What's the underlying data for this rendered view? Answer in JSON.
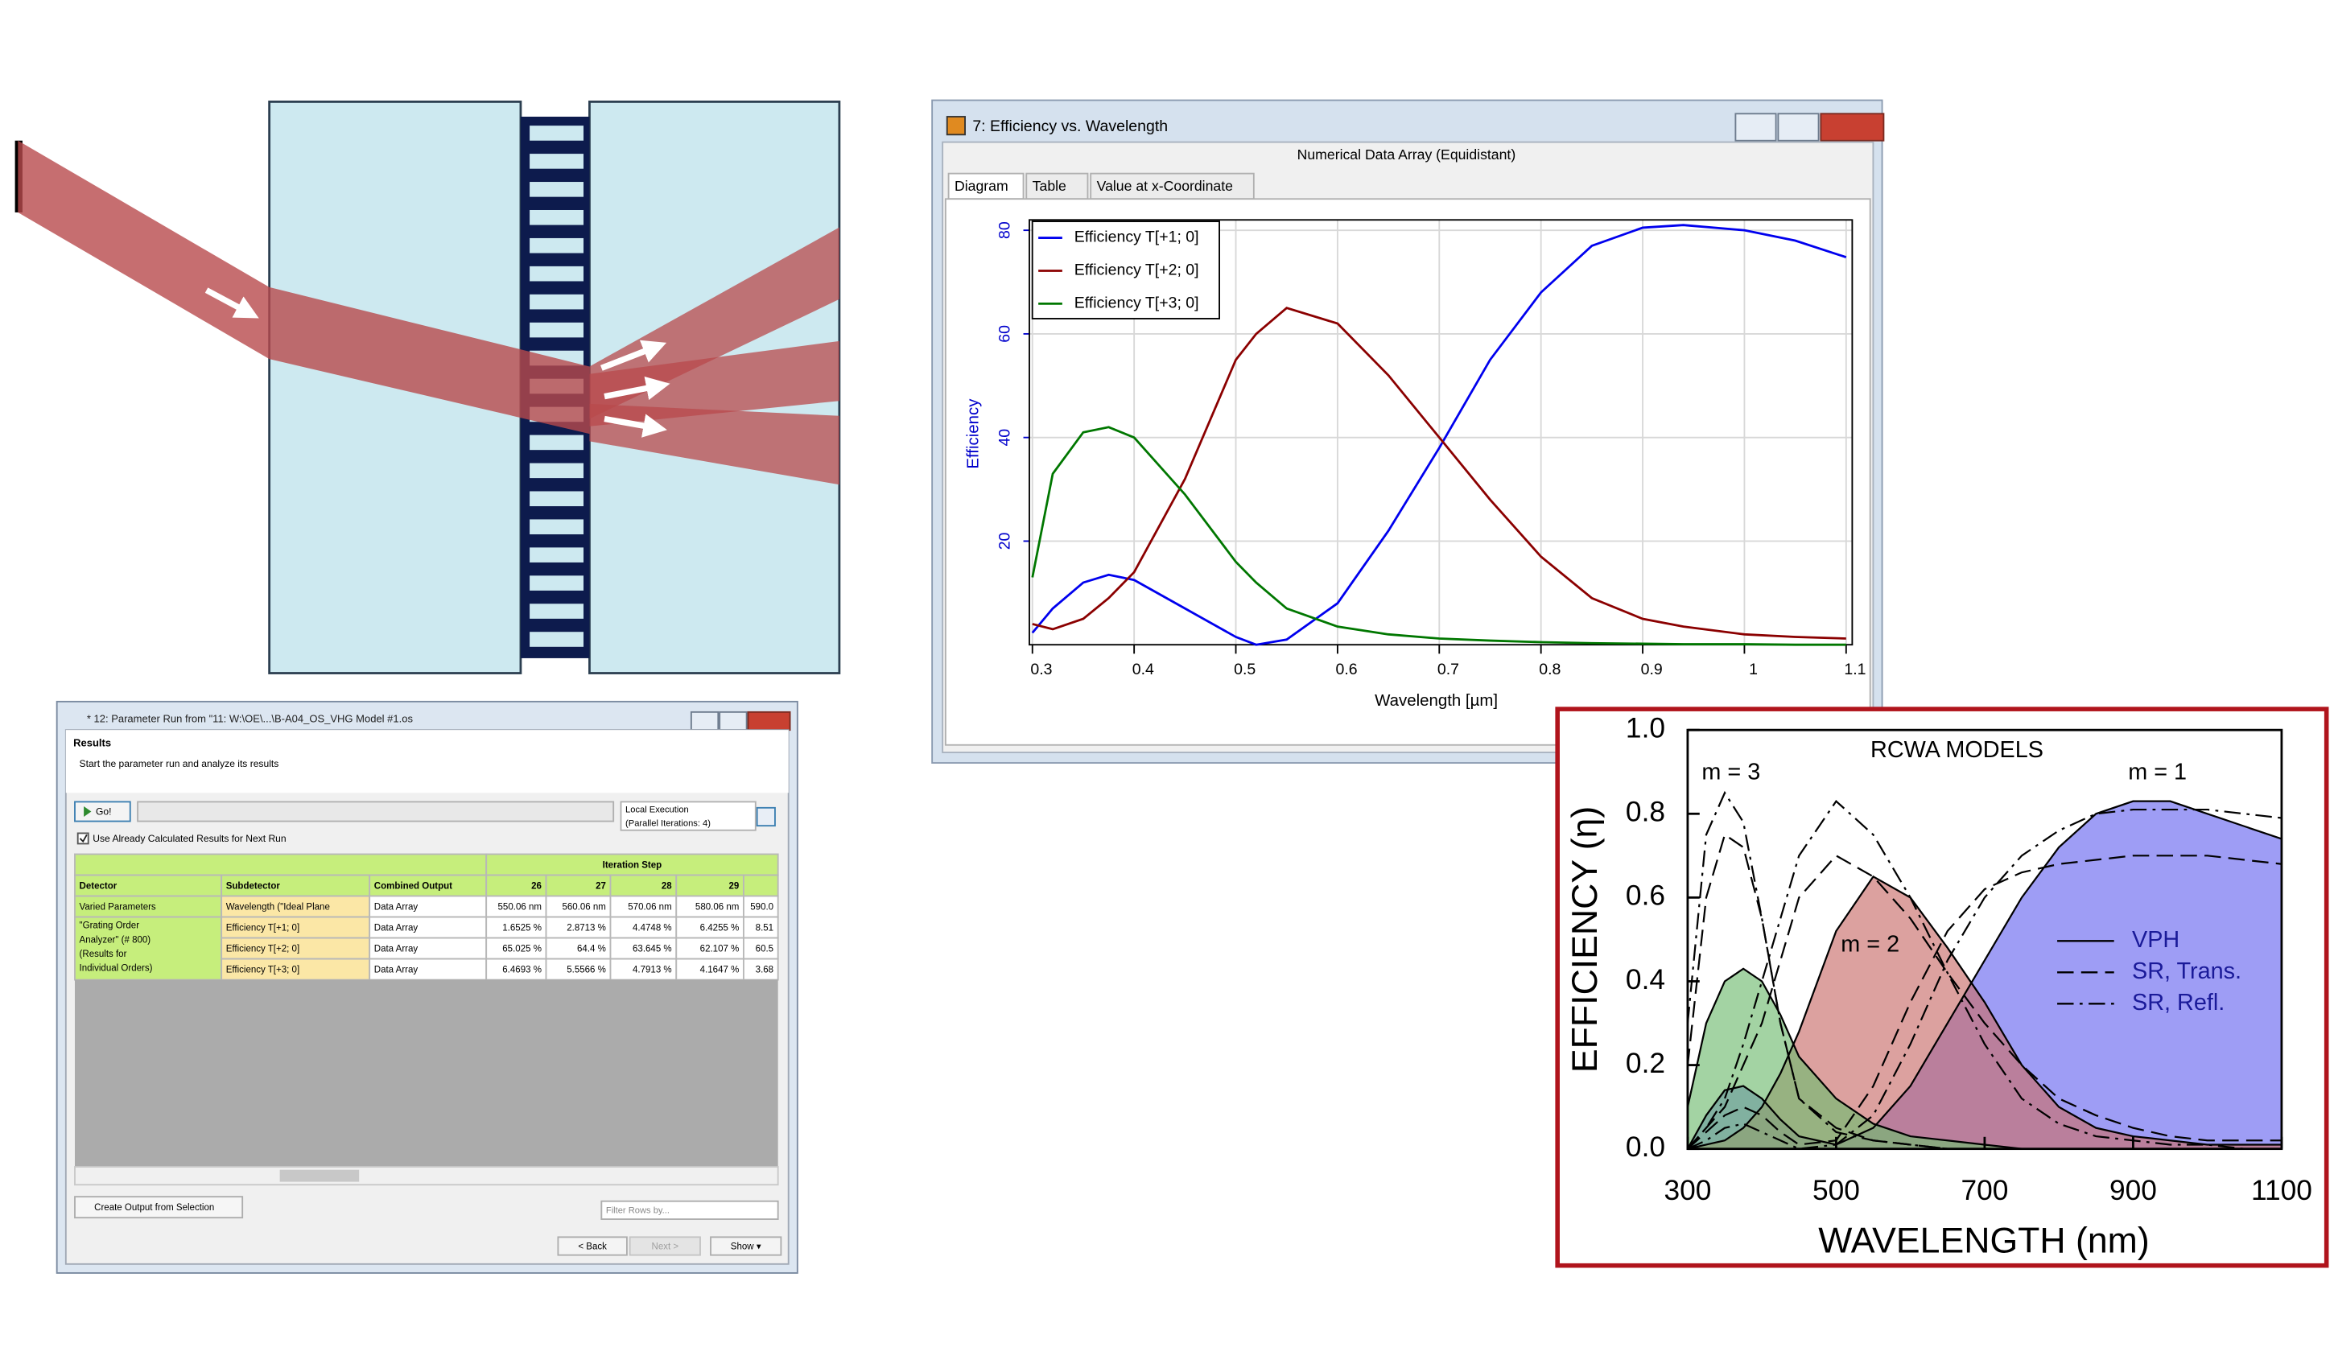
{
  "parameter_run_window": {
    "title": "* 12: Parameter Run from \"11: W:\\OE\\...\\B-A04_OS_VHG Model #1.os",
    "section_title": "Results",
    "section_subtitle": "Start the parameter run and analyze its results",
    "go_button": "Go!",
    "execution_mode": "Local Execution",
    "parallel_note": "(Parallel Iterations: 4)",
    "checkbox_label": "Use Already Calculated Results for Next Run",
    "table": {
      "group_header": "Iteration Step",
      "headers": [
        "Detector",
        "Subdetector",
        "Combined Output",
        "26",
        "27",
        "28",
        "29"
      ],
      "varied_row": [
        "Varied Parameters",
        "Wavelength (\"Ideal Plane",
        "Data Array",
        "550.06 nm",
        "560.06 nm",
        "570.06 nm",
        "580.06 nm",
        "590.0"
      ],
      "detector": "\"Grating Order Analyzer\" (# 800) (Results for Individual Orders)",
      "rows": [
        [
          "Efficiency T[+1; 0]",
          "Data Array",
          "1.6525 %",
          "2.8713 %",
          "4.4748 %",
          "6.4255 %",
          "8.51"
        ],
        [
          "Efficiency T[+2; 0]",
          "Data Array",
          "65.025 %",
          "64.4 %",
          "63.645 %",
          "62.107 %",
          "60.5"
        ],
        [
          "Efficiency T[+3; 0]",
          "Data Array",
          "6.4693 %",
          "5.5566 %",
          "4.7913 %",
          "4.1647 %",
          "3.68"
        ]
      ]
    },
    "create_output_button": "Create Output from Selection",
    "filter_placeholder": "Filter Rows by...",
    "back_button": "< Back",
    "next_button": "Next >",
    "show_button": "Show ▾"
  },
  "efficiency_window": {
    "title": "7: Efficiency vs. Wavelength",
    "subtitle": "Numerical Data Array (Equidistant)",
    "tabs": [
      "Diagram",
      "Table",
      "Value at x-Coordinate"
    ]
  },
  "chart_data": [
    {
      "type": "line",
      "x_label": "Wavelength [µm]",
      "y_label": "Efficiency",
      "x": [
        0.3,
        0.32,
        0.35,
        0.375,
        0.4,
        0.45,
        0.5,
        0.52,
        0.55,
        0.6,
        0.65,
        0.7,
        0.75,
        0.8,
        0.85,
        0.9,
        0.94,
        1.0,
        1.05,
        1.1
      ],
      "series": [
        {
          "name": "Efficiency T[+1; 0]",
          "color": "#0000ee",
          "values": [
            2.3,
            7,
            12,
            13.5,
            12.5,
            7,
            1.5,
            0,
            1,
            8,
            22,
            38,
            55,
            68,
            77,
            80.5,
            81,
            80,
            78,
            74.8
          ]
        },
        {
          "name": "Efficiency T[+2; 0]",
          "color": "#8b0000",
          "values": [
            4,
            3,
            5,
            9,
            14,
            32,
            55,
            60,
            65,
            62,
            52,
            40,
            28,
            17,
            9,
            5,
            3.5,
            2,
            1.5,
            1.2
          ]
        },
        {
          "name": "Efficiency T[+3; 0]",
          "color": "#007700",
          "values": [
            13,
            33,
            41,
            42,
            40,
            29,
            16,
            12,
            7,
            3.5,
            2,
            1.2,
            0.8,
            0.5,
            0.3,
            0.2,
            0.1,
            0.1,
            0,
            0
          ]
        }
      ],
      "xlim": [
        0.297,
        1.106
      ],
      "ylim": [
        0,
        82
      ],
      "xticks": [
        0.3,
        0.4,
        0.5,
        0.6,
        0.7,
        0.8,
        0.9,
        1,
        1.1
      ],
      "yticks": [
        20,
        40,
        60,
        80
      ],
      "grid": true,
      "legend": "upper-left"
    },
    {
      "type": "area",
      "title": "RCWA MODELS",
      "x_label": "WAVELENGTH (nm)",
      "y_label": "EFFICIENCY (η)",
      "x": [
        300,
        325,
        350,
        375,
        400,
        425,
        450,
        500,
        550,
        600,
        650,
        700,
        750,
        800,
        850,
        900,
        950,
        1000,
        1050,
        1100
      ],
      "xlim": [
        300,
        1100
      ],
      "ylim": [
        0,
        1
      ],
      "xticks": [
        300,
        500,
        700,
        900,
        1100
      ],
      "yticks": [
        {
          "value": 0,
          "label": "0.0"
        },
        {
          "value": 0.2,
          "label": "0.2"
        },
        {
          "value": 0.4,
          "label": "0.4"
        },
        {
          "value": 0.6,
          "label": "0.6"
        },
        {
          "value": 0.8,
          "label": "0.8"
        },
        {
          "value": 1,
          "label": "1.0"
        }
      ],
      "order_labels": [
        "m = 1",
        "m = 2",
        "m = 3"
      ],
      "order_colors": [
        "#6a68f0",
        "#c96e6c",
        "#72bb72"
      ],
      "series": [
        {
          "name": "VPH",
          "color": "#000000",
          "dash": "solid",
          "curves": [
            [
              0,
              0.08,
              0.14,
              0.15,
              0.12,
              0.07,
              0.03,
              0.01,
              0.05,
              0.15,
              0.3,
              0.45,
              0.6,
              0.72,
              0.8,
              0.83,
              0.83,
              0.8,
              0.77,
              0.74
            ],
            [
              0,
              0.01,
              0.02,
              0.05,
              0.1,
              0.18,
              0.28,
              0.52,
              0.65,
              0.6,
              0.48,
              0.35,
              0.2,
              0.1,
              0.05,
              0.03,
              0.02,
              0.01,
              0.01,
              0.01
            ],
            [
              0.1,
              0.3,
              0.4,
              0.43,
              0.4,
              0.32,
              0.22,
              0.12,
              0.06,
              0.03,
              0.02,
              0.01,
              0,
              0,
              0,
              0,
              0,
              0,
              0,
              0
            ]
          ]
        },
        {
          "name": "SR, Trans.",
          "color": "#000000",
          "dash": "dashed",
          "curves": [
            [
              0,
              0.04,
              0.08,
              0.1,
              0.08,
              0.04,
              0.01,
              0.02,
              0.15,
              0.35,
              0.52,
              0.62,
              0.66,
              0.68,
              0.69,
              0.7,
              0.7,
              0.7,
              0.69,
              0.68
            ],
            [
              0,
              0.05,
              0.1,
              0.2,
              0.3,
              0.45,
              0.6,
              0.7,
              0.65,
              0.55,
              0.42,
              0.3,
              0.2,
              0.12,
              0.08,
              0.05,
              0.03,
              0.02,
              0.02,
              0.02
            ],
            [
              0.2,
              0.6,
              0.75,
              0.72,
              0.55,
              0.3,
              0.12,
              0.05,
              0.02,
              0.01,
              0,
              0,
              0,
              0,
              0,
              0,
              0,
              0,
              0,
              0
            ]
          ]
        },
        {
          "name": "SR, Refl.",
          "color": "#000000",
          "dash": "dashdot",
          "curves": [
            [
              0,
              0.02,
              0.05,
              0.06,
              0.04,
              0.02,
              0,
              0.01,
              0.08,
              0.25,
              0.45,
              0.6,
              0.7,
              0.76,
              0.8,
              0.81,
              0.81,
              0.81,
              0.8,
              0.79
            ],
            [
              0,
              0.05,
              0.12,
              0.25,
              0.4,
              0.55,
              0.7,
              0.83,
              0.75,
              0.6,
              0.42,
              0.25,
              0.12,
              0.06,
              0.03,
              0.02,
              0.01,
              0.01,
              0,
              0
            ],
            [
              0.3,
              0.75,
              0.85,
              0.78,
              0.55,
              0.3,
              0.12,
              0.04,
              0.02,
              0.01,
              0,
              0,
              0,
              0,
              0,
              0,
              0,
              0,
              0,
              0
            ]
          ]
        }
      ],
      "legend": "right"
    }
  ]
}
